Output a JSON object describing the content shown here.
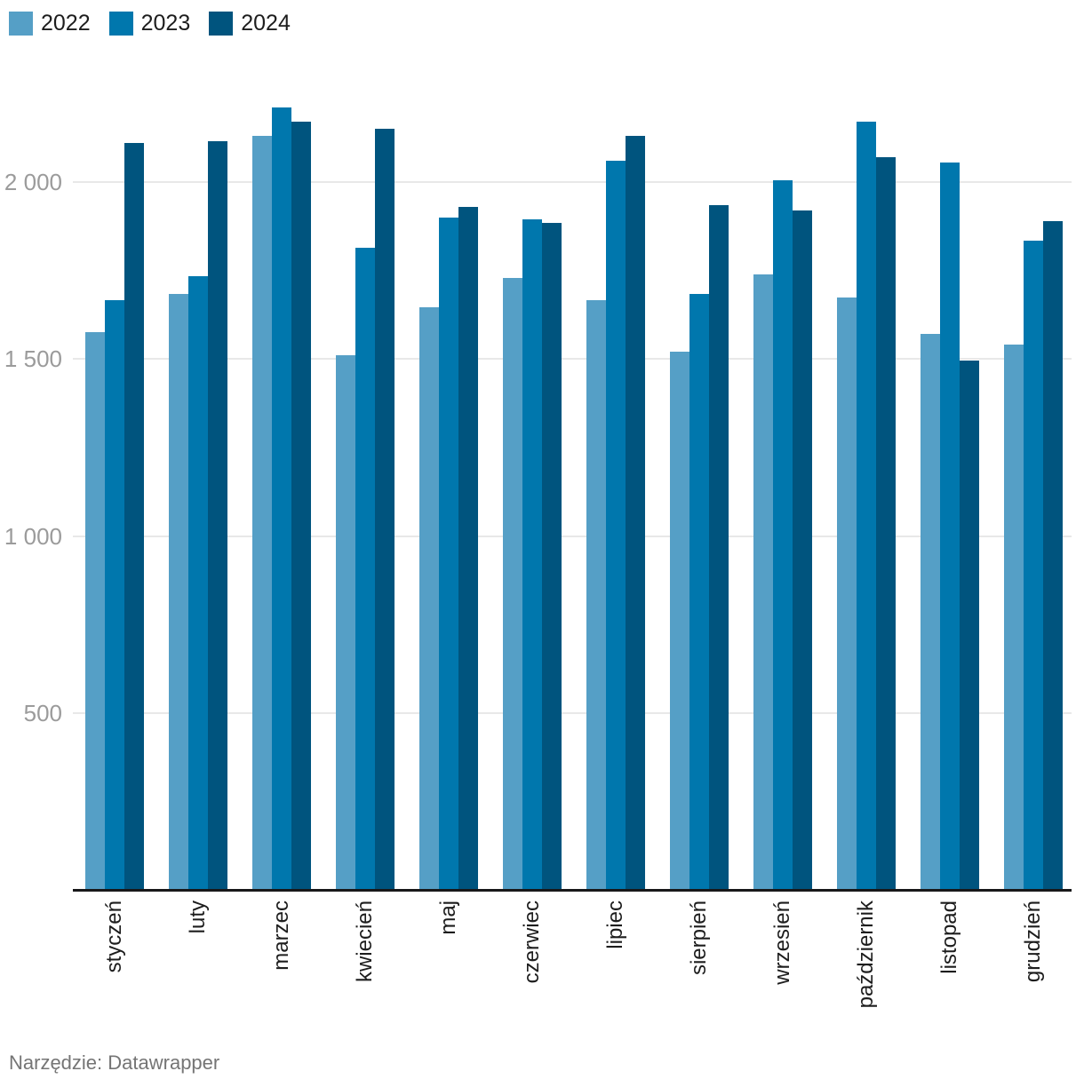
{
  "footer": {
    "text": "Narzędzie: Datawrapper"
  },
  "colors": {
    "series_2022": "#559fc6",
    "series_2023": "#0077ad",
    "series_2024": "#00547e",
    "gridline": "#e8e8e8",
    "axis": "#18181a",
    "tick_label": "#9b9b9b",
    "month_label": "#1d1d1d"
  },
  "chart_data": {
    "type": "bar",
    "categories": [
      "styczeń",
      "luty",
      "marzec",
      "kwiecień",
      "maj",
      "czerwiec",
      "lipiec",
      "sierpień",
      "wrzesień",
      "październik",
      "listopad",
      "grudzień"
    ],
    "series": [
      {
        "name": "2022",
        "color": "#559fc6",
        "values": [
          1575,
          1685,
          2130,
          1510,
          1645,
          1730,
          1665,
          1520,
          1740,
          1675,
          1570,
          1540
        ]
      },
      {
        "name": "2023",
        "color": "#0077ad",
        "values": [
          1665,
          1735,
          2210,
          1815,
          1900,
          1895,
          2060,
          1685,
          2005,
          2170,
          2055,
          1835
        ]
      },
      {
        "name": "2024",
        "color": "#00547e",
        "values": [
          2110,
          2115,
          2170,
          2150,
          1930,
          1885,
          2130,
          1935,
          1920,
          2070,
          1495,
          1890
        ]
      }
    ],
    "title": "",
    "xlabel": "",
    "ylabel": "",
    "ylim": [
      0,
      2250
    ],
    "yticks": [
      500,
      1000,
      1500,
      2000
    ],
    "ytick_labels": [
      "500",
      "1 000",
      "1 500",
      "2 000"
    ],
    "grid": true,
    "legend_position": "top-left",
    "x_label_rotation": -90
  }
}
